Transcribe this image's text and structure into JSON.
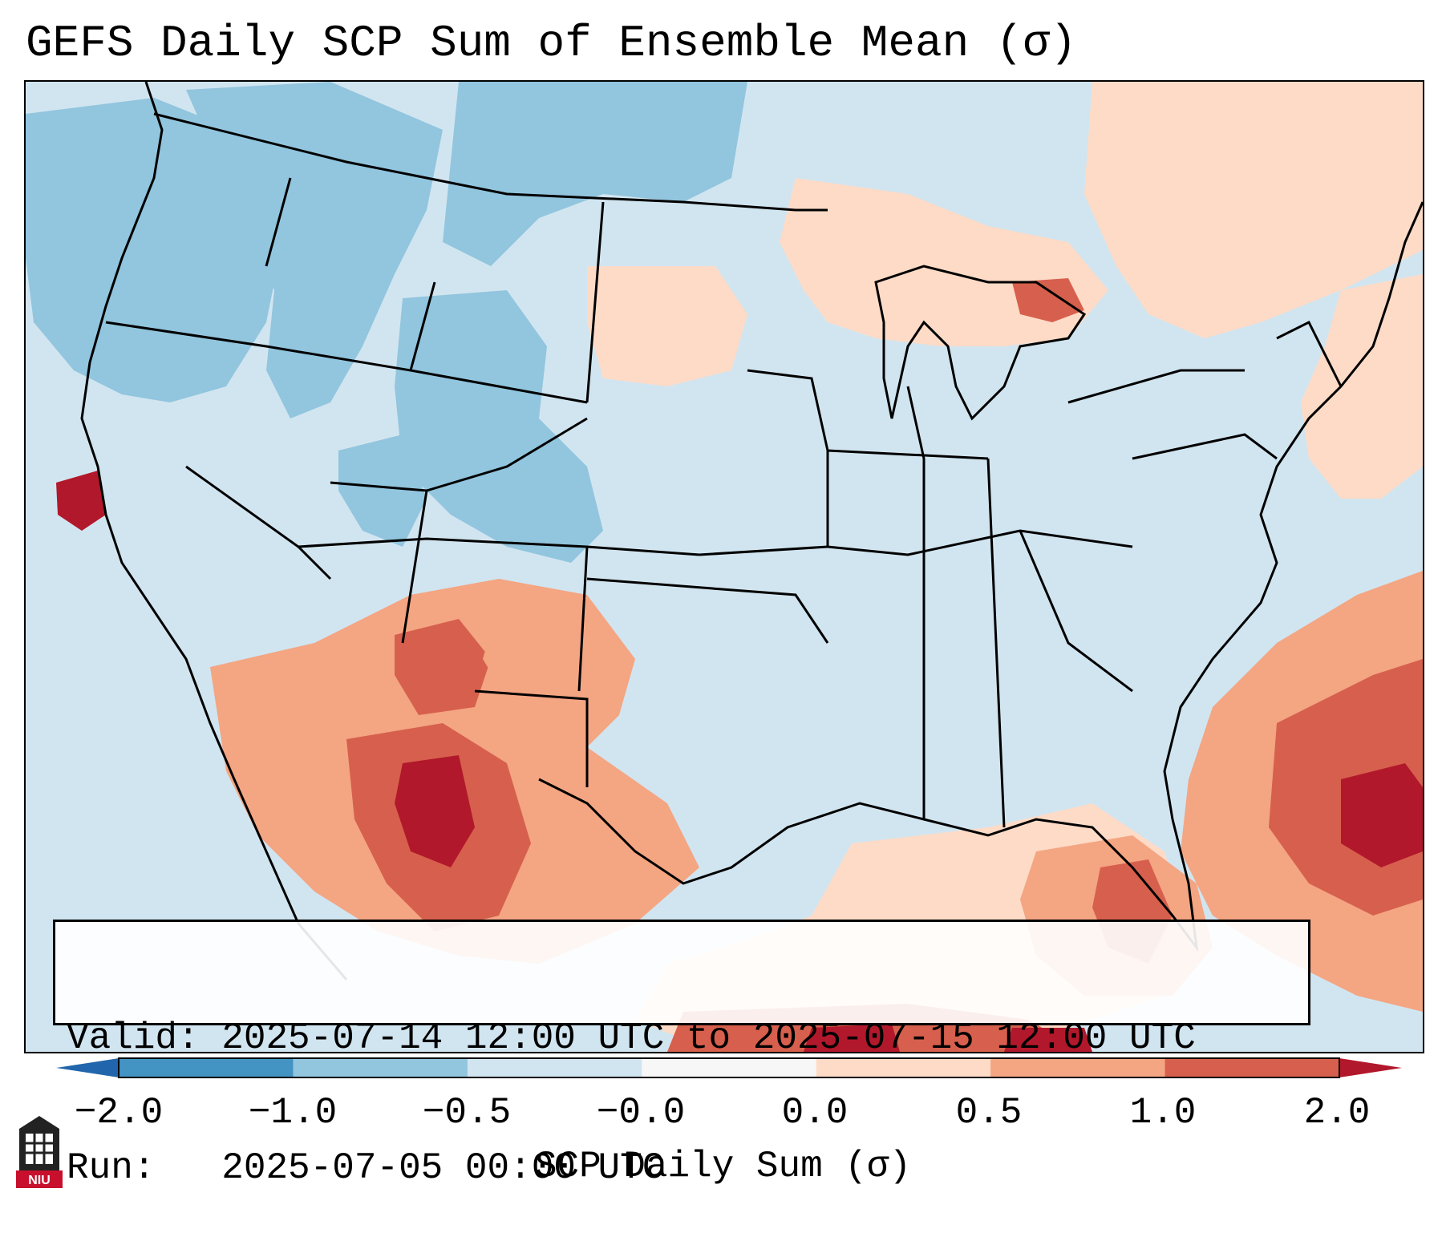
{
  "title": "GEFS Daily SCP Sum of Ensemble Mean (σ)",
  "info": {
    "valid": "Valid: 2025-07-14 12:00 UTC to 2025-07-15 12:00 UTC",
    "run": "Run:   2025-07-05 00:00 UTC"
  },
  "colorbar": {
    "label": "SCP Daily Sum (σ)",
    "ticks": [
      "−2.0",
      "−1.0",
      "−0.5",
      "−0.0",
      "0.0",
      "0.5",
      "1.0",
      "2.0"
    ],
    "bin_colors": [
      "#4393c3",
      "#92c5de",
      "#d1e5f0",
      "#f7f7f7",
      "#fddbc7",
      "#f4a582",
      "#d6604d"
    ],
    "under_color": "#2166ac",
    "over_color": "#b2182b"
  },
  "map": {
    "ocean_color": "#d1e5f0",
    "palette": {
      "neg2": "#92c5de",
      "pos1": "#fddbc7",
      "pos2": "#f4a582",
      "pos3": "#d6604d",
      "pos4": "#b2182b",
      "neutral": "#f7f7f7"
    },
    "region_levels": {
      "pacific-northwest": "neg2",
      "northern-rockies": "neg2",
      "wyoming-colorado": "neg2",
      "utah": "neg2",
      "montana-dakotas": "neg2",
      "quebec-canada": "pos1",
      "ontario-lakes": "pos1",
      "northern-michigan": "pos3",
      "new-england-atlantic": "pos1",
      "northern-plains": "pos1",
      "southwest-arizona": "pos2",
      "arizona-core": "pos3",
      "new-mexico": "pos2",
      "sonora": "pos3",
      "sonora-core": "pos4",
      "gulf-south-mexico": "pos1",
      "florida-gulf": "pos2",
      "florida-core": "pos3",
      "atlantic-offshore": "pos2",
      "atlantic-core": "pos3",
      "atlantic-peak": "pos4",
      "california-offshore": "pos4",
      "yucatan": "pos3",
      "yucatan-core": "pos4"
    }
  },
  "logo": {
    "text": "NIU",
    "color": "#c8102e"
  }
}
